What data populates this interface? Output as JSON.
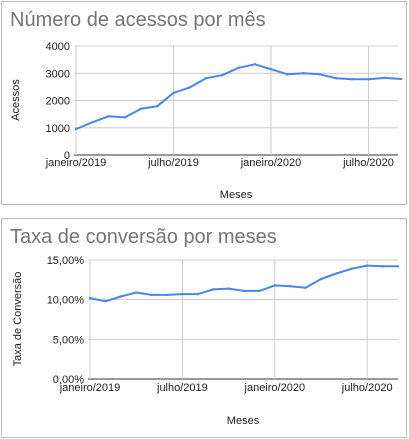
{
  "colors": {
    "line": "#4a86e8",
    "grid": "#cccccc",
    "axis": "#333333",
    "title": "#757575",
    "border": "#bdbdbd"
  },
  "chart_data": [
    {
      "type": "line",
      "title": "Número de acessos por mês",
      "xlabel": "Meses",
      "ylabel": "Acessos",
      "ylim": [
        0,
        4000
      ],
      "yticks": [
        "0",
        "1000",
        "2000",
        "3000",
        "4000"
      ],
      "xtick_labels": [
        "janeiro/2019",
        "julho/2019",
        "janeiro/2020",
        "julho/2020"
      ],
      "grid": true,
      "legend": "none",
      "x": [
        "2019-01",
        "2019-02",
        "2019-03",
        "2019-04",
        "2019-05",
        "2019-06",
        "2019-07",
        "2019-08",
        "2019-09",
        "2019-10",
        "2019-11",
        "2019-12",
        "2020-01",
        "2020-02",
        "2020-03",
        "2020-04",
        "2020-05",
        "2020-06",
        "2020-07",
        "2020-08",
        "2020-09"
      ],
      "series": [
        {
          "values": [
            950,
            1200,
            1420,
            1380,
            1700,
            1790,
            2280,
            2480,
            2820,
            2930,
            3200,
            3330,
            3150,
            2960,
            3000,
            2960,
            2820,
            2780,
            2780,
            2830,
            2790
          ]
        }
      ]
    },
    {
      "type": "line",
      "title": "Taxa de conversão por meses",
      "xlabel": "Meses",
      "ylabel": "Taxa de Conversão",
      "ylim": [
        0,
        15
      ],
      "yticks": [
        "0,00%",
        "5,00%",
        "10,00%",
        "15,00%"
      ],
      "xtick_labels": [
        "janeiro/2019",
        "julho/2019",
        "janeiro/2020",
        "julho/2020"
      ],
      "grid": true,
      "legend": "none",
      "x": [
        "2019-01",
        "2019-02",
        "2019-03",
        "2019-04",
        "2019-05",
        "2019-06",
        "2019-07",
        "2019-08",
        "2019-09",
        "2019-10",
        "2019-11",
        "2019-12",
        "2020-01",
        "2020-02",
        "2020-03",
        "2020-04",
        "2020-05",
        "2020-06",
        "2020-07",
        "2020-08",
        "2020-09"
      ],
      "series": [
        {
          "values": [
            10.2,
            9.8,
            10.4,
            10.9,
            10.6,
            10.6,
            10.7,
            10.7,
            11.3,
            11.4,
            11.1,
            11.1,
            11.8,
            11.7,
            11.5,
            12.6,
            13.3,
            13.9,
            14.3,
            14.2,
            14.2
          ]
        }
      ]
    }
  ]
}
